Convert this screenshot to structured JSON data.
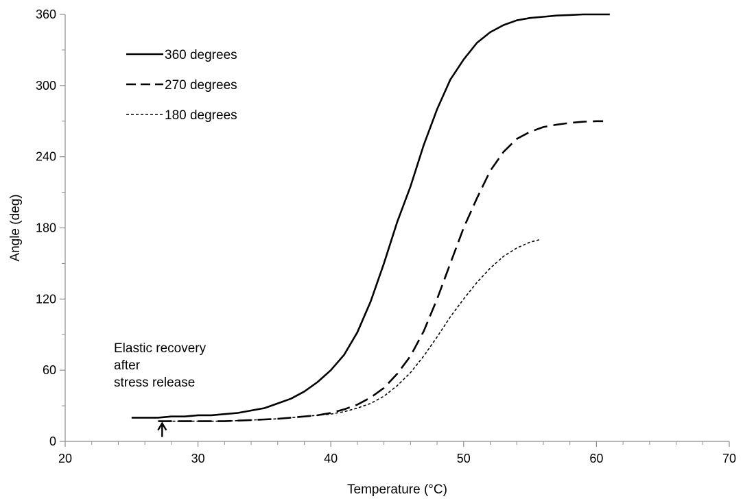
{
  "chart_data": {
    "type": "line",
    "title": "",
    "xlabel": "Temperature (°C)",
    "ylabel": "Angle (deg)",
    "xlim": [
      20,
      70
    ],
    "ylim": [
      0,
      360
    ],
    "x_ticks": [
      "20",
      "30",
      "40",
      "50",
      "60",
      "70"
    ],
    "y_ticks": [
      "0",
      "60",
      "120",
      "180",
      "240",
      "300",
      "360"
    ],
    "grid": false,
    "legend_position": "top-left",
    "series": [
      {
        "name": "360 degrees",
        "line_style": "solid",
        "color": "#000000",
        "points": [
          [
            25,
            20
          ],
          [
            26,
            20
          ],
          [
            27,
            20
          ],
          [
            28,
            21
          ],
          [
            29,
            21
          ],
          [
            30,
            22
          ],
          [
            31,
            22
          ],
          [
            32,
            23
          ],
          [
            33,
            24
          ],
          [
            34,
            26
          ],
          [
            35,
            28
          ],
          [
            36,
            32
          ],
          [
            37,
            36
          ],
          [
            38,
            42
          ],
          [
            39,
            50
          ],
          [
            40,
            60
          ],
          [
            41,
            73
          ],
          [
            42,
            92
          ],
          [
            43,
            118
          ],
          [
            44,
            150
          ],
          [
            45,
            185
          ],
          [
            46,
            215
          ],
          [
            47,
            250
          ],
          [
            48,
            280
          ],
          [
            49,
            305
          ],
          [
            50,
            322
          ],
          [
            51,
            336
          ],
          [
            52,
            345
          ],
          [
            53,
            351
          ],
          [
            54,
            355
          ],
          [
            55,
            357
          ],
          [
            56,
            358
          ],
          [
            57,
            359
          ],
          [
            58,
            359.5
          ],
          [
            59,
            360
          ],
          [
            60,
            360
          ],
          [
            61,
            360
          ]
        ]
      },
      {
        "name": "270 degrees",
        "line_style": "dashed",
        "color": "#000000",
        "points": [
          [
            27,
            17
          ],
          [
            28,
            17
          ],
          [
            29,
            17
          ],
          [
            30,
            17
          ],
          [
            31,
            17
          ],
          [
            32,
            17
          ],
          [
            33,
            17.5
          ],
          [
            34,
            18
          ],
          [
            35,
            18.5
          ],
          [
            36,
            19
          ],
          [
            37,
            20
          ],
          [
            38,
            21
          ],
          [
            39,
            22
          ],
          [
            40,
            24
          ],
          [
            41,
            27
          ],
          [
            42,
            31
          ],
          [
            43,
            37
          ],
          [
            44,
            45
          ],
          [
            45,
            57
          ],
          [
            46,
            72
          ],
          [
            47,
            93
          ],
          [
            48,
            120
          ],
          [
            49,
            150
          ],
          [
            50,
            180
          ],
          [
            51,
            205
          ],
          [
            52,
            228
          ],
          [
            53,
            244
          ],
          [
            54,
            255
          ],
          [
            55,
            261
          ],
          [
            56,
            265
          ],
          [
            57,
            267
          ],
          [
            58,
            268.5
          ],
          [
            59,
            269.5
          ],
          [
            60,
            270
          ],
          [
            60.5,
            270
          ]
        ]
      },
      {
        "name": "180 degrees",
        "line_style": "dotted",
        "color": "#000000",
        "points": [
          [
            27,
            17
          ],
          [
            28,
            17
          ],
          [
            29,
            17
          ],
          [
            30,
            17
          ],
          [
            31,
            17
          ],
          [
            32,
            17
          ],
          [
            33,
            17.5
          ],
          [
            34,
            18
          ],
          [
            35,
            18.5
          ],
          [
            36,
            19
          ],
          [
            37,
            20
          ],
          [
            38,
            21
          ],
          [
            39,
            22
          ],
          [
            40,
            23
          ],
          [
            41,
            25
          ],
          [
            42,
            28
          ],
          [
            43,
            32
          ],
          [
            44,
            38
          ],
          [
            45,
            47
          ],
          [
            46,
            58
          ],
          [
            47,
            72
          ],
          [
            48,
            88
          ],
          [
            49,
            105
          ],
          [
            50,
            120
          ],
          [
            51,
            134
          ],
          [
            52,
            146
          ],
          [
            53,
            156
          ],
          [
            54,
            163
          ],
          [
            55,
            168
          ],
          [
            55.7,
            170
          ]
        ]
      }
    ],
    "annotations": [
      {
        "lines": [
          "Elastic recovery",
          "after",
          "stress release"
        ],
        "arrow_x": 27.3,
        "arrow_y": 17
      }
    ]
  }
}
